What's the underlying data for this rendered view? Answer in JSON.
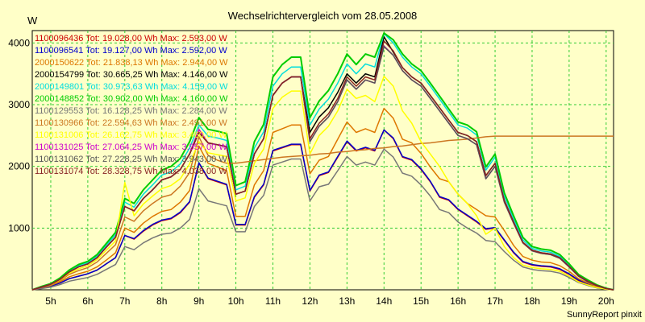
{
  "footer": "SunnyReport pinxit",
  "chart_data": {
    "type": "line",
    "title": "Wechselrichtervergleich vom 28.05.2008",
    "ylabel": "W",
    "xlabel": "",
    "xlim": [
      4.5,
      20.2
    ],
    "ylim": [
      0,
      4200
    ],
    "grid": true,
    "legend_position": "top-left",
    "x_ticks": [
      5,
      6,
      7,
      8,
      9,
      10,
      11,
      12,
      13,
      14,
      15,
      16,
      17,
      18,
      19,
      20
    ],
    "x_tick_labels": [
      "5h",
      "6h",
      "7h",
      "8h",
      "9h",
      "10h",
      "11h",
      "12h",
      "13h",
      "14h",
      "15h",
      "16h",
      "17h",
      "18h",
      "19h",
      "20h"
    ],
    "y_ticks": [
      1000,
      2000,
      3000,
      4000
    ],
    "y_tick_labels": [
      "1000",
      "2000",
      "3000",
      "4000"
    ],
    "x": [
      4.5,
      4.75,
      5.0,
      5.25,
      5.5,
      5.75,
      6.0,
      6.25,
      6.5,
      6.75,
      7.0,
      7.25,
      7.5,
      7.75,
      8.0,
      8.25,
      8.5,
      8.75,
      9.0,
      9.25,
      9.5,
      9.75,
      10.0,
      10.25,
      10.5,
      10.75,
      11.0,
      11.25,
      11.5,
      11.75,
      12.0,
      12.25,
      12.5,
      12.75,
      13.0,
      13.25,
      13.5,
      13.75,
      14.0,
      14.25,
      14.5,
      14.75,
      15.0,
      15.25,
      15.5,
      15.75,
      16.0,
      16.25,
      16.5,
      16.75,
      17.0,
      17.25,
      17.5,
      17.75,
      18.0,
      18.25,
      18.5,
      18.75,
      19.0,
      19.25,
      19.5,
      19.75,
      20.0,
      20.2
    ],
    "series": [
      {
        "name": "1100096436",
        "label": "1100096436 Tot: 19.028,00 Wh Max: 2.593,00 W",
        "color": "#cc0000",
        "width": 1.5,
        "values": [
          0,
          30,
          60,
          110,
          180,
          220,
          260,
          320,
          420,
          520,
          880,
          820,
          950,
          1050,
          1120,
          1150,
          1250,
          1420,
          2050,
          1800,
          1750,
          1700,
          1050,
          1050,
          1500,
          1700,
          2250,
          2300,
          2350,
          2350,
          1600,
          1850,
          1900,
          2150,
          2400,
          2250,
          2300,
          2250,
          2590,
          2450,
          2150,
          2100,
          1950,
          1750,
          1500,
          1450,
          1300,
          1200,
          1100,
          980,
          1000,
          800,
          600,
          450,
          400,
          380,
          370,
          330,
          250,
          150,
          90,
          40,
          10,
          0
        ]
      },
      {
        "name": "1100096541",
        "label": "1100096541 Tot: 19.127,00 Wh Max: 2.592,00 W",
        "color": "#0000cc",
        "width": 1.5,
        "values": [
          0,
          30,
          60,
          110,
          180,
          220,
          260,
          320,
          420,
          520,
          880,
          830,
          960,
          1060,
          1130,
          1160,
          1260,
          1430,
          2060,
          1810,
          1760,
          1710,
          1060,
          1060,
          1510,
          1710,
          2260,
          2310,
          2360,
          2360,
          1610,
          1860,
          1910,
          2160,
          2410,
          2260,
          2310,
          2260,
          2590,
          2460,
          2160,
          2110,
          1960,
          1760,
          1510,
          1460,
          1310,
          1210,
          1110,
          990,
          1010,
          810,
          610,
          460,
          410,
          390,
          380,
          340,
          260,
          160,
          100,
          50,
          15,
          0
        ]
      },
      {
        "name": "2000150622",
        "label": "2000150622 Tot: 21.838,13 Wh Max: 2.944,00 W",
        "color": "#dd7700",
        "width": 1.5,
        "values": [
          0,
          35,
          70,
          130,
          210,
          260,
          300,
          370,
          480,
          600,
          1000,
          930,
          1080,
          1190,
          1270,
          1300,
          1420,
          1610,
          2330,
          2050,
          1990,
          1930,
          1190,
          1190,
          1700,
          1930,
          2550,
          2610,
          2670,
          2670,
          1880,
          2100,
          2160,
          2440,
          2720,
          2550,
          2610,
          2550,
          2940,
          2780,
          2440,
          2380,
          2210,
          1990,
          1800,
          1750,
          1550,
          1400,
          1300,
          1200,
          1180,
          960,
          720,
          540,
          480,
          450,
          440,
          390,
          300,
          180,
          110,
          50,
          15,
          0
        ]
      },
      {
        "name": "2000154799",
        "label": "2000154799 Tot: 30.665,25 Wh Max: 4.146,00 W",
        "color": "#000000",
        "width": 1.5,
        "values": [
          0,
          45,
          90,
          170,
          290,
          370,
          420,
          520,
          690,
          850,
          1350,
          1280,
          1480,
          1620,
          1780,
          1830,
          1950,
          2200,
          2550,
          2380,
          2350,
          2320,
          1550,
          1600,
          2200,
          2450,
          3150,
          3350,
          3450,
          3450,
          2550,
          2800,
          2950,
          3200,
          3500,
          3350,
          3500,
          3450,
          4100,
          3850,
          3600,
          3450,
          3350,
          3150,
          2950,
          2750,
          2550,
          2500,
          2400,
          1850,
          2050,
          1450,
          1100,
          770,
          640,
          600,
          580,
          520,
          380,
          230,
          140,
          70,
          20,
          0
        ]
      },
      {
        "name": "2000149801",
        "label": "2000149801 Tot: 30.973,63 Wh Max: 4.159,00 W",
        "color": "#00dddd",
        "width": 1.5,
        "values": [
          0,
          50,
          95,
          180,
          305,
          390,
          440,
          545,
          720,
          890,
          1420,
          1340,
          1550,
          1700,
          1860,
          1910,
          2040,
          2300,
          2670,
          2490,
          2460,
          2420,
          1620,
          1680,
          2300,
          2560,
          3300,
          3500,
          3610,
          3610,
          2670,
          2930,
          3090,
          3350,
          3660,
          3500,
          3660,
          3610,
          4150,
          4000,
          3770,
          3610,
          3500,
          3300,
          3090,
          2880,
          2670,
          2620,
          2510,
          1940,
          2150,
          1520,
          1150,
          810,
          670,
          630,
          610,
          540,
          400,
          240,
          150,
          75,
          20,
          0
        ]
      },
      {
        "name": "2000148852",
        "label": "2000148852 Tot: 30.902,00 Wh Max: 4.160,00 W",
        "color": "#00cc00",
        "width": 2,
        "values": [
          0,
          55,
          100,
          190,
          320,
          410,
          460,
          570,
          750,
          930,
          1480,
          1400,
          1620,
          1780,
          1940,
          2000,
          2130,
          2400,
          2790,
          2600,
          2570,
          2530,
          1690,
          1750,
          2400,
          2680,
          3450,
          3650,
          3770,
          3770,
          2790,
          3060,
          3230,
          3500,
          3820,
          3650,
          3820,
          3770,
          4160,
          4050,
          3820,
          3660,
          3550,
          3350,
          3140,
          2930,
          2720,
          2670,
          2560,
          1990,
          2200,
          1570,
          1200,
          850,
          700,
          660,
          640,
          570,
          420,
          250,
          160,
          80,
          25,
          0
        ]
      },
      {
        "name": "1100129553",
        "label": "1100129553 Tot: 16.128,25 Wh Max: 2.284,00 W",
        "color": "#777777",
        "width": 1.5,
        "values": [
          0,
          20,
          45,
          85,
          140,
          170,
          200,
          250,
          330,
          410,
          700,
          650,
          760,
          840,
          900,
          920,
          1000,
          1140,
          1640,
          1440,
          1400,
          1360,
          940,
          940,
          1350,
          1530,
          2020,
          2070,
          2120,
          2120,
          1440,
          1670,
          1710,
          1930,
          2160,
          2020,
          2070,
          2020,
          2280,
          2150,
          1890,
          1840,
          1700,
          1520,
          1300,
          1250,
          1100,
          1000,
          920,
          800,
          780,
          620,
          480,
          370,
          330,
          310,
          300,
          270,
          200,
          120,
          70,
          30,
          8,
          0
        ]
      },
      {
        "name": "1100130966",
        "label": "1100130966 Tot: 22.594,63 Wh Max: 2.491,00 W",
        "color": "#cc7722",
        "width": 1.5,
        "values": [
          0,
          40,
          80,
          150,
          250,
          310,
          360,
          450,
          590,
          730,
          1180,
          1110,
          1280,
          1400,
          1500,
          1540,
          1680,
          1900,
          2480,
          2180,
          2100,
          2050,
          2050,
          2070,
          2090,
          2110,
          2130,
          2150,
          2160,
          2170,
          2180,
          2200,
          2210,
          2230,
          2240,
          2260,
          2270,
          2290,
          2300,
          2320,
          2330,
          2350,
          2370,
          2380,
          2400,
          2420,
          2430,
          2440,
          2460,
          2480,
          2490,
          2490,
          2490,
          2490,
          2490,
          2490,
          2490,
          2490,
          2490,
          2490,
          2490,
          2490,
          2490,
          2490
        ]
      },
      {
        "name": "1100131006",
        "label": "1100131006 Tot: 26.162,75 Wh Max: 3.460,00 W",
        "color": "#ffff00",
        "width": 1.5,
        "values": [
          0,
          45,
          85,
          160,
          270,
          340,
          390,
          490,
          640,
          790,
          1740,
          1200,
          1390,
          1520,
          1640,
          1690,
          1800,
          2040,
          2400,
          2220,
          2190,
          2160,
          1440,
          1490,
          2050,
          2280,
          2940,
          3120,
          3220,
          3220,
          2200,
          2500,
          2650,
          2900,
          3250,
          3100,
          3150,
          3050,
          3460,
          3300,
          2900,
          2700,
          2400,
          2200,
          2000,
          1750,
          1550,
          1400,
          1200,
          900,
          1000,
          700,
          520,
          400,
          360,
          340,
          330,
          300,
          220,
          130,
          80,
          35,
          10,
          0
        ]
      },
      {
        "name": "1100131025",
        "label": "1100131025 Tot: 27.064,25 Wh Max: 3.957,00 W",
        "color": "#cc00cc",
        "width": 1.5,
        "values": [
          0,
          45,
          90,
          170,
          290,
          370,
          420,
          520,
          690,
          850,
          1350,
          1280,
          1480,
          1620,
          1780,
          1830,
          1950,
          2200,
          2600,
          2380,
          2350,
          2320,
          1550,
          1600,
          2200,
          2450,
          3150,
          3350,
          3450,
          3450,
          2400,
          2650,
          2800,
          3050,
          3400,
          3250,
          3400,
          3350,
          3950,
          3800,
          3550,
          3400,
          3300,
          3100,
          2900,
          2700,
          2500,
          2450,
          2350,
          1800,
          2000,
          1420,
          1080,
          760,
          630,
          590,
          570,
          510,
          370,
          220,
          130,
          65,
          20,
          0
        ]
      },
      {
        "name": "1100131062",
        "label": "1100131062 Tot: 27.228,25 Wh Max: 3.943,00 W",
        "color": "#555555",
        "width": 1.5,
        "values": [
          0,
          45,
          90,
          170,
          290,
          370,
          420,
          520,
          690,
          850,
          1350,
          1280,
          1480,
          1620,
          1780,
          1830,
          1950,
          2200,
          2550,
          2380,
          2350,
          2320,
          1550,
          1600,
          2200,
          2450,
          3150,
          3350,
          3450,
          3450,
          2400,
          2650,
          2800,
          3050,
          3400,
          3250,
          3400,
          3350,
          3940,
          3800,
          3550,
          3400,
          3300,
          3100,
          2900,
          2700,
          2500,
          2450,
          2350,
          1800,
          2000,
          1420,
          1080,
          760,
          630,
          590,
          570,
          510,
          370,
          220,
          130,
          65,
          20,
          0
        ]
      },
      {
        "name": "1100131074",
        "label": "1100131074 Tot: 28.328,75 Wh Max: 4.038,00 W",
        "color": "#882222",
        "width": 1.5,
        "values": [
          0,
          45,
          90,
          170,
          290,
          370,
          420,
          520,
          690,
          850,
          1350,
          1280,
          1480,
          1620,
          1780,
          1830,
          1950,
          2200,
          2550,
          2380,
          2350,
          2320,
          1550,
          1600,
          2200,
          2450,
          3150,
          3350,
          3450,
          3450,
          2450,
          2700,
          2850,
          3100,
          3450,
          3300,
          3450,
          3400,
          4030,
          3870,
          3600,
          3450,
          3350,
          3150,
          2950,
          2750,
          2550,
          2500,
          2400,
          1850,
          2050,
          1450,
          1100,
          770,
          640,
          600,
          580,
          520,
          380,
          230,
          140,
          70,
          20,
          0
        ]
      }
    ]
  }
}
